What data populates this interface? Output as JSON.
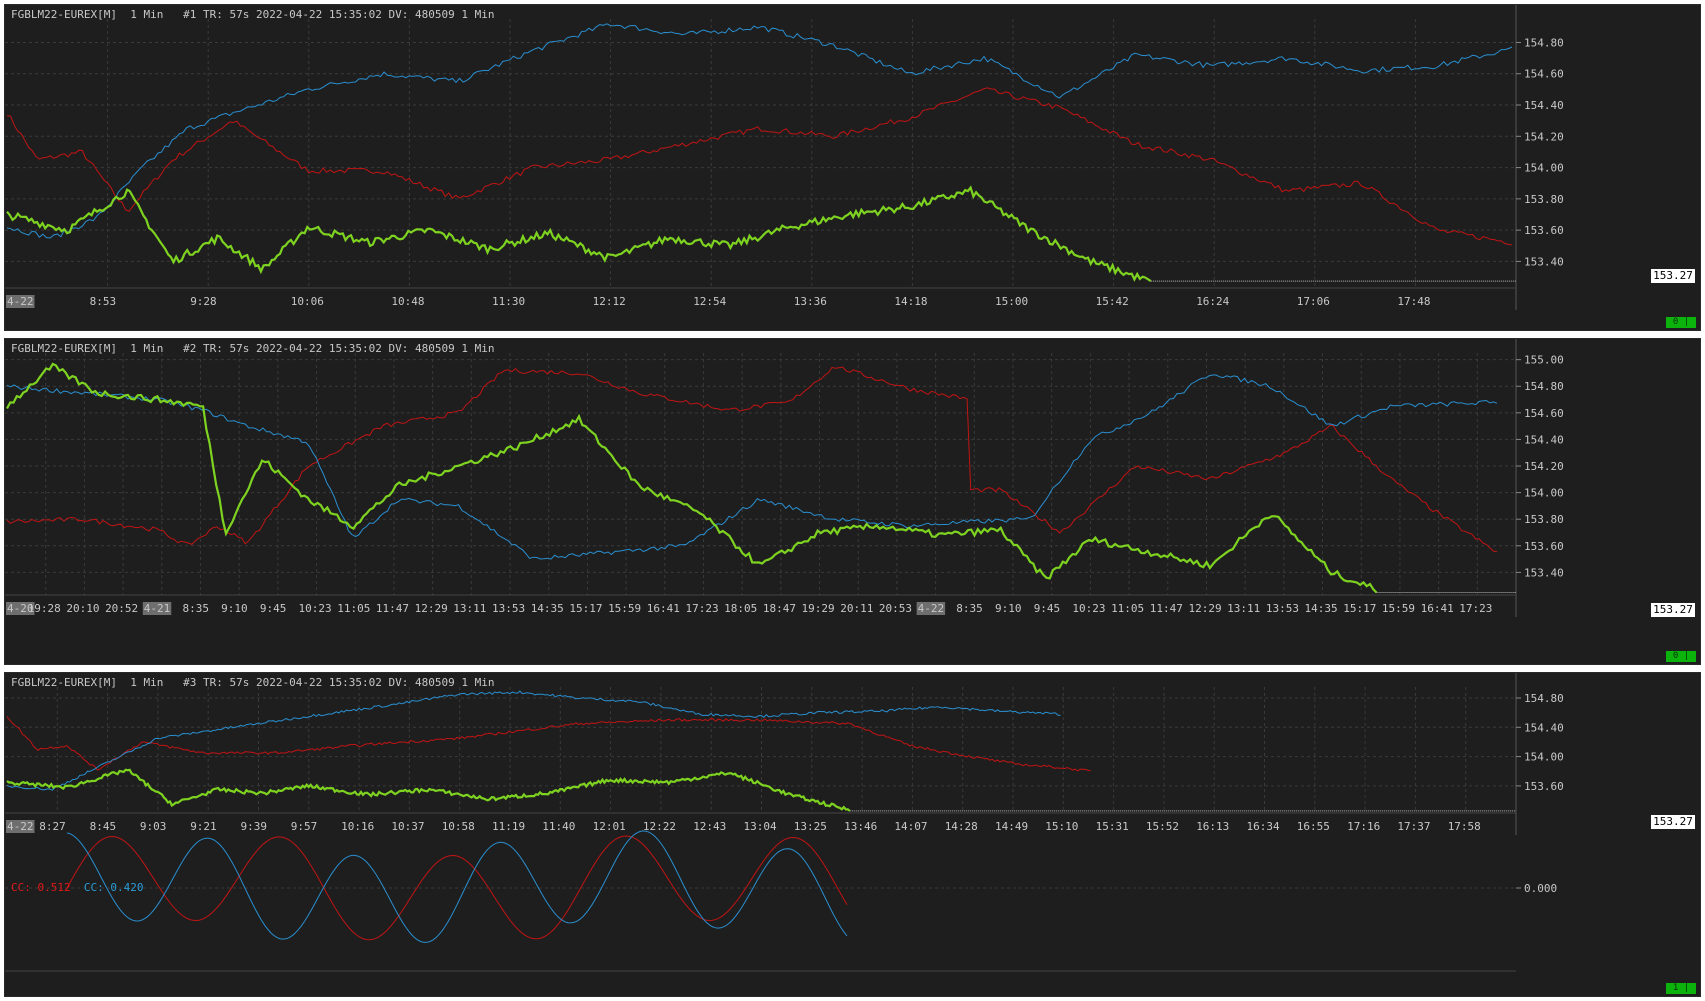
{
  "colors": {
    "background": "#1e1e1e",
    "grid": "#3a3a3a",
    "text": "#c8c8c8",
    "red": "#c21414",
    "blue": "#2a8fd0",
    "green": "#7ed321",
    "last_label_bg": "#ffffff",
    "change_badge": "#0db30d"
  },
  "panels": [
    {
      "header": "FGBLM22-EUREX[M]  1 Min   #1 TR: 57s 2022-04-22 15:35:02 DV: 480509 1 Min",
      "last_price": "153.27",
      "change_badge": "0 |",
      "x_labels": [
        "4-22",
        "8:53",
        "9:28",
        "10:06",
        "10:48",
        "11:30",
        "12:12",
        "12:54",
        "13:36",
        "14:18",
        "15:00",
        "15:42",
        "16:24",
        "17:06",
        "17:48"
      ],
      "y_ticks": [
        "154.80",
        "154.60",
        "154.40",
        "154.20",
        "154.00",
        "153.80",
        "153.60",
        "153.40"
      ]
    },
    {
      "header": "FGBLM22-EUREX[M]  1 Min   #2 TR: 57s 2022-04-22 15:35:02 DV: 480509 1 Min",
      "last_price": "153.27",
      "change_badge": "0 |",
      "x_labels": [
        "4-20",
        "19:28",
        "20:10",
        "20:52",
        "4-21",
        "8:35",
        "9:10",
        "9:45",
        "10:23",
        "11:05",
        "11:47",
        "12:29",
        "13:11",
        "13:53",
        "14:35",
        "15:17",
        "15:59",
        "16:41",
        "17:23",
        "18:05",
        "18:47",
        "19:29",
        "20:11",
        "20:53",
        "4-22",
        "8:35",
        "9:10",
        "9:45",
        "10:23",
        "11:05",
        "11:47",
        "12:29",
        "13:11",
        "13:53",
        "14:35",
        "15:17",
        "15:59",
        "16:41",
        "17:23"
      ],
      "y_ticks": [
        "155.00",
        "154.80",
        "154.60",
        "154.40",
        "154.20",
        "154.00",
        "153.80",
        "153.60",
        "153.40"
      ]
    },
    {
      "header": "FGBLM22-EUREX[M]  1 Min   #3 TR: 57s 2022-04-22 15:35:02 DV: 480509 1 Min",
      "last_price": "153.27",
      "change_badge": "1 |",
      "x_labels": [
        "4-22",
        "8:27",
        "8:45",
        "9:03",
        "9:21",
        "9:39",
        "9:57",
        "10:16",
        "10:37",
        "10:58",
        "11:19",
        "11:40",
        "12:01",
        "12:22",
        "12:43",
        "13:04",
        "13:25",
        "13:46",
        "14:07",
        "14:28",
        "14:49",
        "15:10",
        "15:31",
        "15:52",
        "16:13",
        "16:34",
        "16:55",
        "17:16",
        "17:37",
        "17:58"
      ],
      "y_ticks": [
        "154.80",
        "154.40",
        "154.00",
        "153.60"
      ],
      "cc_red": "CC: 0.512",
      "cc_blue": "CC: 0.420",
      "osc_tick": "0.000"
    }
  ],
  "chart_data": [
    {
      "type": "line",
      "ylim": [
        153.23,
        154.95
      ],
      "series": [
        {
          "color": "red",
          "x": [
            0,
            0.02,
            0.05,
            0.08,
            0.11,
            0.15,
            0.2,
            0.25,
            0.3,
            0.35,
            0.4,
            0.45,
            0.5,
            0.55,
            0.6,
            0.65,
            0.7,
            0.75,
            0.8,
            0.85,
            0.9,
            0.95,
            1.0
          ],
          "y": [
            154.35,
            154.05,
            154.1,
            153.72,
            154.05,
            154.3,
            153.98,
            153.98,
            153.8,
            154.0,
            154.05,
            154.15,
            154.25,
            154.2,
            154.32,
            154.5,
            154.38,
            154.15,
            154.05,
            153.85,
            153.9,
            153.6,
            153.52
          ]
        },
        {
          "color": "blue",
          "x": [
            0,
            0.03,
            0.06,
            0.09,
            0.12,
            0.15,
            0.2,
            0.25,
            0.3,
            0.35,
            0.4,
            0.45,
            0.5,
            0.55,
            0.6,
            0.65,
            0.7,
            0.75,
            0.8,
            0.85,
            0.9,
            0.95,
            1.0
          ],
          "y": [
            153.62,
            153.55,
            153.68,
            154.0,
            154.25,
            154.35,
            154.5,
            154.6,
            154.55,
            154.75,
            154.92,
            154.85,
            154.9,
            154.78,
            154.6,
            154.7,
            154.45,
            154.72,
            154.65,
            154.7,
            154.62,
            154.65,
            154.76
          ]
        },
        {
          "color": "green",
          "x": [
            0,
            0.04,
            0.08,
            0.11,
            0.14,
            0.17,
            0.2,
            0.24,
            0.28,
            0.32,
            0.36,
            0.4,
            0.44,
            0.48,
            0.52,
            0.56,
            0.6,
            0.64,
            0.68,
            0.72,
            0.76
          ],
          "y": [
            153.7,
            153.6,
            153.85,
            153.4,
            153.55,
            153.35,
            153.62,
            153.52,
            153.6,
            153.48,
            153.58,
            153.42,
            153.55,
            153.5,
            153.62,
            153.7,
            153.75,
            153.85,
            153.6,
            153.4,
            153.27
          ]
        }
      ]
    },
    {
      "type": "line",
      "ylim": [
        153.23,
        155.05
      ],
      "series": [
        {
          "color": "red",
          "x": [
            0,
            0.05,
            0.1,
            0.12,
            0.14,
            0.16,
            0.2,
            0.25,
            0.3,
            0.33,
            0.38,
            0.42,
            0.48,
            0.52,
            0.55,
            0.6,
            0.64,
            0.636,
            0.66,
            0.7,
            0.75,
            0.8,
            0.85,
            0.88,
            0.92,
            0.95,
            0.99
          ],
          "y": [
            153.78,
            153.8,
            153.72,
            153.6,
            153.75,
            153.62,
            154.2,
            154.5,
            154.6,
            154.92,
            154.9,
            154.75,
            154.62,
            154.68,
            154.95,
            154.78,
            154.7,
            154.02,
            154.02,
            153.7,
            154.2,
            154.1,
            154.3,
            154.5,
            154.1,
            153.85,
            153.55
          ]
        },
        {
          "color": "blue",
          "x": [
            0,
            0.05,
            0.1,
            0.13,
            0.16,
            0.2,
            0.23,
            0.26,
            0.3,
            0.35,
            0.4,
            0.45,
            0.5,
            0.55,
            0.6,
            0.64,
            0.68,
            0.72,
            0.76,
            0.8,
            0.84,
            0.88,
            0.92,
            0.99
          ],
          "y": [
            154.8,
            154.75,
            154.7,
            154.62,
            154.5,
            154.38,
            153.65,
            153.95,
            153.9,
            153.5,
            153.55,
            153.6,
            153.95,
            153.8,
            153.75,
            153.78,
            153.8,
            154.4,
            154.6,
            154.9,
            154.8,
            154.5,
            154.65,
            154.68
          ]
        },
        {
          "color": "green",
          "x": [
            0,
            0.03,
            0.06,
            0.1,
            0.13,
            0.145,
            0.17,
            0.2,
            0.23,
            0.26,
            0.3,
            0.34,
            0.38,
            0.42,
            0.46,
            0.5,
            0.54,
            0.58,
            0.62,
            0.66,
            0.69,
            0.72,
            0.76,
            0.8,
            0.84,
            0.88,
            0.91
          ],
          "y": [
            154.65,
            154.95,
            154.75,
            154.7,
            154.65,
            153.7,
            154.25,
            153.95,
            153.75,
            154.05,
            154.2,
            154.35,
            154.55,
            154.05,
            153.85,
            153.45,
            153.7,
            153.75,
            153.68,
            153.72,
            153.35,
            153.65,
            153.55,
            153.45,
            153.85,
            153.4,
            153.27
          ]
        }
      ]
    },
    {
      "type": "line",
      "ylim": [
        153.23,
        154.95
      ],
      "series": [
        {
          "color": "red",
          "x": [
            0,
            0.02,
            0.04,
            0.06,
            0.09,
            0.13,
            0.18,
            0.23,
            0.3,
            0.38,
            0.44,
            0.5,
            0.56,
            0.6,
            0.64,
            0.67,
            0.7,
            0.72
          ],
          "y": [
            154.55,
            154.1,
            154.15,
            153.82,
            154.2,
            154.05,
            154.05,
            154.15,
            154.25,
            154.45,
            154.5,
            154.5,
            154.45,
            154.15,
            154.0,
            153.9,
            153.85,
            153.8
          ]
        },
        {
          "color": "blue",
          "x": [
            0,
            0.03,
            0.06,
            0.1,
            0.15,
            0.2,
            0.26,
            0.3,
            0.34,
            0.38,
            0.42,
            0.46,
            0.5,
            0.54,
            0.58,
            0.62,
            0.66,
            0.7
          ],
          "y": [
            153.6,
            153.55,
            153.85,
            154.25,
            154.4,
            154.55,
            154.72,
            154.85,
            154.88,
            154.8,
            154.75,
            154.58,
            154.55,
            154.6,
            154.62,
            154.68,
            154.62,
            154.58
          ]
        },
        {
          "color": "green",
          "x": [
            0,
            0.04,
            0.08,
            0.11,
            0.14,
            0.17,
            0.2,
            0.24,
            0.28,
            0.32,
            0.36,
            0.4,
            0.44,
            0.48,
            0.52,
            0.56
          ],
          "y": [
            153.65,
            153.58,
            153.82,
            153.35,
            153.55,
            153.5,
            153.6,
            153.48,
            153.55,
            153.42,
            153.5,
            153.68,
            153.65,
            153.78,
            153.48,
            153.27
          ]
        }
      ],
      "oscillator": {
        "type": "line",
        "ylim": [
          -1.3,
          1.3
        ],
        "series": [
          {
            "name": "CC",
            "color": "red",
            "value": 0.512
          },
          {
            "name": "CC",
            "color": "blue",
            "value": 0.42
          }
        ]
      }
    }
  ]
}
